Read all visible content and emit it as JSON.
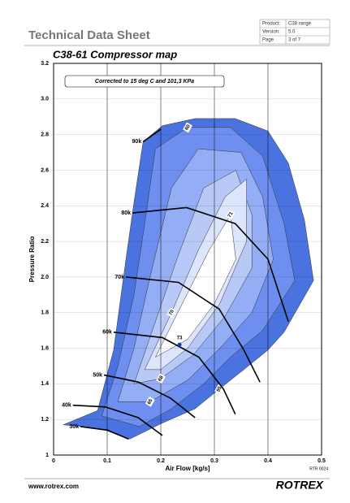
{
  "header": {
    "title": "Technical Data Sheet",
    "table": [
      [
        "Product:",
        "C38 range"
      ],
      [
        "Version:",
        "5.0"
      ],
      [
        "Page",
        "3 of 7"
      ]
    ]
  },
  "chart_data": {
    "type": "compressor-map",
    "title": "C38-61 Compressor map",
    "annotation": "Corrected to 15 deg C and 101,3 KPa",
    "x_label": "Air Flow [kg/s]",
    "y_label": "Pressure Ratio",
    "code": "RTR 0024",
    "xlim": [
      0,
      0.5
    ],
    "ylim": [
      1,
      3.2
    ],
    "xticks": [
      0,
      0.1,
      0.2,
      0.3,
      0.4,
      0.5
    ],
    "yticks": [
      1,
      1.2,
      1.4,
      1.6,
      1.8,
      {
        "value": 2,
        "label": "2.0"
      },
      2.2,
      2.4,
      2.6,
      2.8,
      {
        "value": 3,
        "label": "3.0"
      },
      3.2
    ],
    "grid": true,
    "efficiency_islands": [
      {
        "name": "55",
        "color": "#4a73e0",
        "x": [
          0.018,
          0.082,
          0.112,
          0.135,
          0.15,
          0.167,
          0.203,
          0.264,
          0.339,
          0.4,
          0.438,
          0.468,
          0.485,
          0.43,
          0.4,
          0.355,
          0.309,
          0.264,
          0.203,
          0.142,
          0.097,
          0.052
        ],
        "y": [
          1.17,
          1.25,
          1.59,
          2.1,
          2.42,
          2.76,
          2.85,
          2.89,
          2.89,
          2.82,
          2.64,
          2.32,
          1.98,
          1.69,
          1.59,
          1.48,
          1.37,
          1.26,
          1.18,
          1.09,
          1.14,
          1.16
        ]
      },
      {
        "name": "60",
        "color": "#6f8ff0",
        "x": [
          0.09,
          0.12,
          0.15,
          0.17,
          0.19,
          0.25,
          0.33,
          0.39,
          0.43,
          0.45,
          0.39,
          0.33,
          0.28,
          0.22,
          0.16
        ],
        "y": [
          1.22,
          1.5,
          1.9,
          2.3,
          2.72,
          2.84,
          2.84,
          2.68,
          2.3,
          1.98,
          1.7,
          1.55,
          1.4,
          1.26,
          1.16
        ]
      },
      {
        "name": "65",
        "color": "#93aef5",
        "x": [
          0.12,
          0.15,
          0.18,
          0.22,
          0.27,
          0.35,
          0.39,
          0.41,
          0.37,
          0.31,
          0.25,
          0.18
        ],
        "y": [
          1.3,
          1.6,
          2.0,
          2.5,
          2.72,
          2.7,
          2.45,
          2.1,
          1.8,
          1.6,
          1.42,
          1.3
        ]
      },
      {
        "name": "68",
        "color": "#b8c9f8",
        "x": [
          0.15,
          0.19,
          0.23,
          0.28,
          0.34,
          0.37,
          0.37,
          0.32,
          0.26,
          0.2
        ],
        "y": [
          1.4,
          1.75,
          2.1,
          2.5,
          2.6,
          2.35,
          2.05,
          1.78,
          1.56,
          1.43
        ]
      },
      {
        "name": "70",
        "color": "#dce5fc",
        "x": [
          0.17,
          0.22,
          0.27,
          0.32,
          0.36,
          0.36,
          0.31,
          0.25,
          0.2
        ],
        "y": [
          1.48,
          1.8,
          2.15,
          2.45,
          2.55,
          2.2,
          1.85,
          1.6,
          1.48
        ]
      },
      {
        "name": "71",
        "color": "#ffffff",
        "x": [
          0.19,
          0.24,
          0.29,
          0.33,
          0.34,
          0.3,
          0.25
        ],
        "y": [
          1.55,
          1.85,
          2.15,
          2.35,
          2.1,
          1.85,
          1.65
        ]
      }
    ],
    "speed_lines": [
      {
        "name": "30k",
        "x": [
          0.05,
          0.1,
          0.14
        ],
        "y": [
          1.16,
          1.14,
          1.09
        ]
      },
      {
        "name": "40k",
        "x": [
          0.036,
          0.097,
          0.158,
          0.203
        ],
        "y": [
          1.28,
          1.27,
          1.21,
          1.11
        ]
      },
      {
        "name": "50k",
        "x": [
          0.094,
          0.158,
          0.218,
          0.264
        ],
        "y": [
          1.45,
          1.41,
          1.32,
          1.21
        ]
      },
      {
        "name": "60k",
        "x": [
          0.112,
          0.203,
          0.271,
          0.317,
          0.339
        ],
        "y": [
          1.69,
          1.66,
          1.55,
          1.37,
          1.23
        ]
      },
      {
        "name": "70k",
        "x": [
          0.135,
          0.233,
          0.309,
          0.355,
          0.385
        ],
        "y": [
          2.0,
          1.97,
          1.82,
          1.59,
          1.41
        ]
      },
      {
        "name": "80k",
        "x": [
          0.147,
          0.248,
          0.339,
          0.4,
          0.438
        ],
        "y": [
          2.36,
          2.39,
          2.3,
          2.1,
          1.75
        ]
      },
      {
        "name": "90k",
        "x": [
          0.167,
          0.2
        ],
        "y": [
          2.76,
          2.83
        ]
      }
    ],
    "peak": {
      "name": "73",
      "color": "#1a3fb0",
      "x": 0.235,
      "y": 1.62
    }
  },
  "footer": {
    "url": "www.rotrex.com",
    "logo": "ROTREX"
  }
}
